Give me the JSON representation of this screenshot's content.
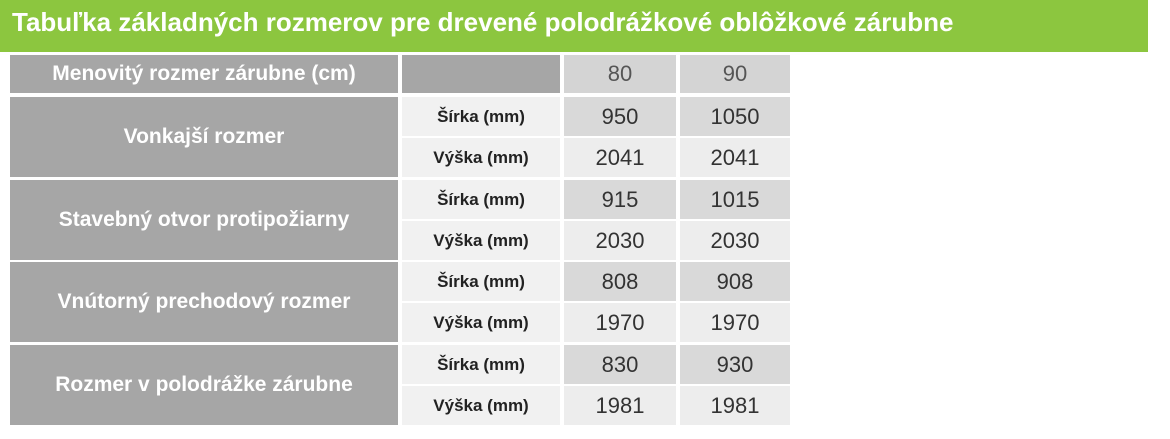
{
  "header": {
    "title": "Tabuľka základných rozmerov pre drevené polodrážkové oblôžkové zárubne"
  },
  "table": {
    "header": [
      "Menovitý rozmer zárubne (cm)",
      80,
      90
    ],
    "groups": [
      {
        "label": "Vonkajší rozmer",
        "rows": [
          [
            "Šírka (mm)",
            950,
            1050
          ],
          [
            "Výška (mm)",
            2041,
            2041
          ]
        ]
      },
      {
        "label": "Stavebný otvor protipožiarny",
        "rows": [
          [
            "Šírka (mm)",
            915,
            1015
          ],
          [
            "Výška (mm)",
            2030,
            2030
          ]
        ]
      },
      {
        "label": "Vnútorný prechodový rozmer",
        "rows": [
          [
            "Šírka (mm)",
            808,
            908
          ],
          [
            "Výška (mm)",
            1970,
            1970
          ]
        ]
      },
      {
        "label": "Rozmer v polodrážke zárubne",
        "rows": [
          [
            "Šírka (mm)",
            830,
            930
          ],
          [
            "Výška (mm)",
            1981,
            1981
          ]
        ]
      }
    ]
  }
}
